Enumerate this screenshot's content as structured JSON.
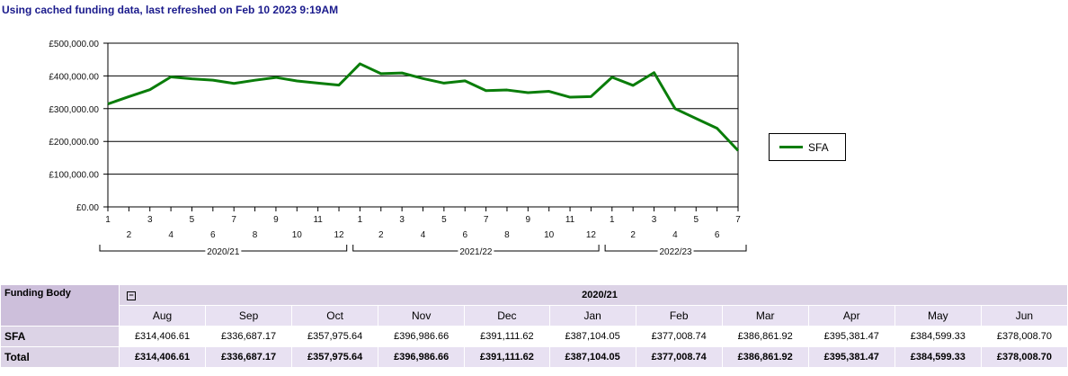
{
  "header": {
    "status": "Using cached funding data, last refreshed on Feb 10 2023 9:19AM"
  },
  "chart_data": {
    "type": "line",
    "title": "",
    "y_ticks": [
      "£0.00",
      "£100,000.00",
      "£200,000.00",
      "£300,000.00",
      "£400,000.00",
      "£500,000.00"
    ],
    "ylim": [
      0,
      500000
    ],
    "grid": true,
    "legend_position": "right",
    "groups": [
      {
        "label": "2020/21",
        "periods": [
          "1",
          "2",
          "3",
          "4",
          "5",
          "6",
          "7",
          "8",
          "9",
          "10",
          "11",
          "12"
        ]
      },
      {
        "label": "2021/22",
        "periods": [
          "1",
          "2",
          "3",
          "4",
          "5",
          "6",
          "7",
          "8",
          "9",
          "10",
          "11",
          "12"
        ]
      },
      {
        "label": "2022/23",
        "periods": [
          "1",
          "2",
          "3",
          "4",
          "5",
          "6",
          "7"
        ]
      }
    ],
    "series": [
      {
        "name": "SFA",
        "color": "#0a7d0a",
        "values": [
          314406.61,
          336687.17,
          357975.64,
          396986.66,
          391111.62,
          387104.05,
          377008.74,
          386861.92,
          395381.47,
          384599.33,
          378008.7,
          372000,
          437000,
          407000,
          409000,
          392000,
          378000,
          385000,
          355000,
          357000,
          349000,
          353000,
          335000,
          337000,
          396000,
          371000,
          410000,
          300000,
          270000,
          240000,
          172000
        ]
      }
    ]
  },
  "table": {
    "row_header": "Funding Body",
    "year": "2020/21",
    "toggle": "−",
    "months": [
      "Aug",
      "Sep",
      "Oct",
      "Nov",
      "Dec",
      "Jan",
      "Feb",
      "Mar",
      "Apr",
      "May",
      "Jun"
    ],
    "rows": [
      {
        "label": "SFA",
        "values": [
          "£314,406.61",
          "£336,687.17",
          "£357,975.64",
          "£396,986.66",
          "£391,111.62",
          "£387,104.05",
          "£377,008.74",
          "£386,861.92",
          "£395,381.47",
          "£384,599.33",
          "£378,008.70"
        ]
      },
      {
        "label": "Total",
        "values": [
          "£314,406.61",
          "£336,687.17",
          "£357,975.64",
          "£396,986.66",
          "£391,111.62",
          "£387,104.05",
          "£377,008.74",
          "£386,861.92",
          "£395,381.47",
          "£384,599.33",
          "£378,008.70"
        ]
      }
    ]
  }
}
